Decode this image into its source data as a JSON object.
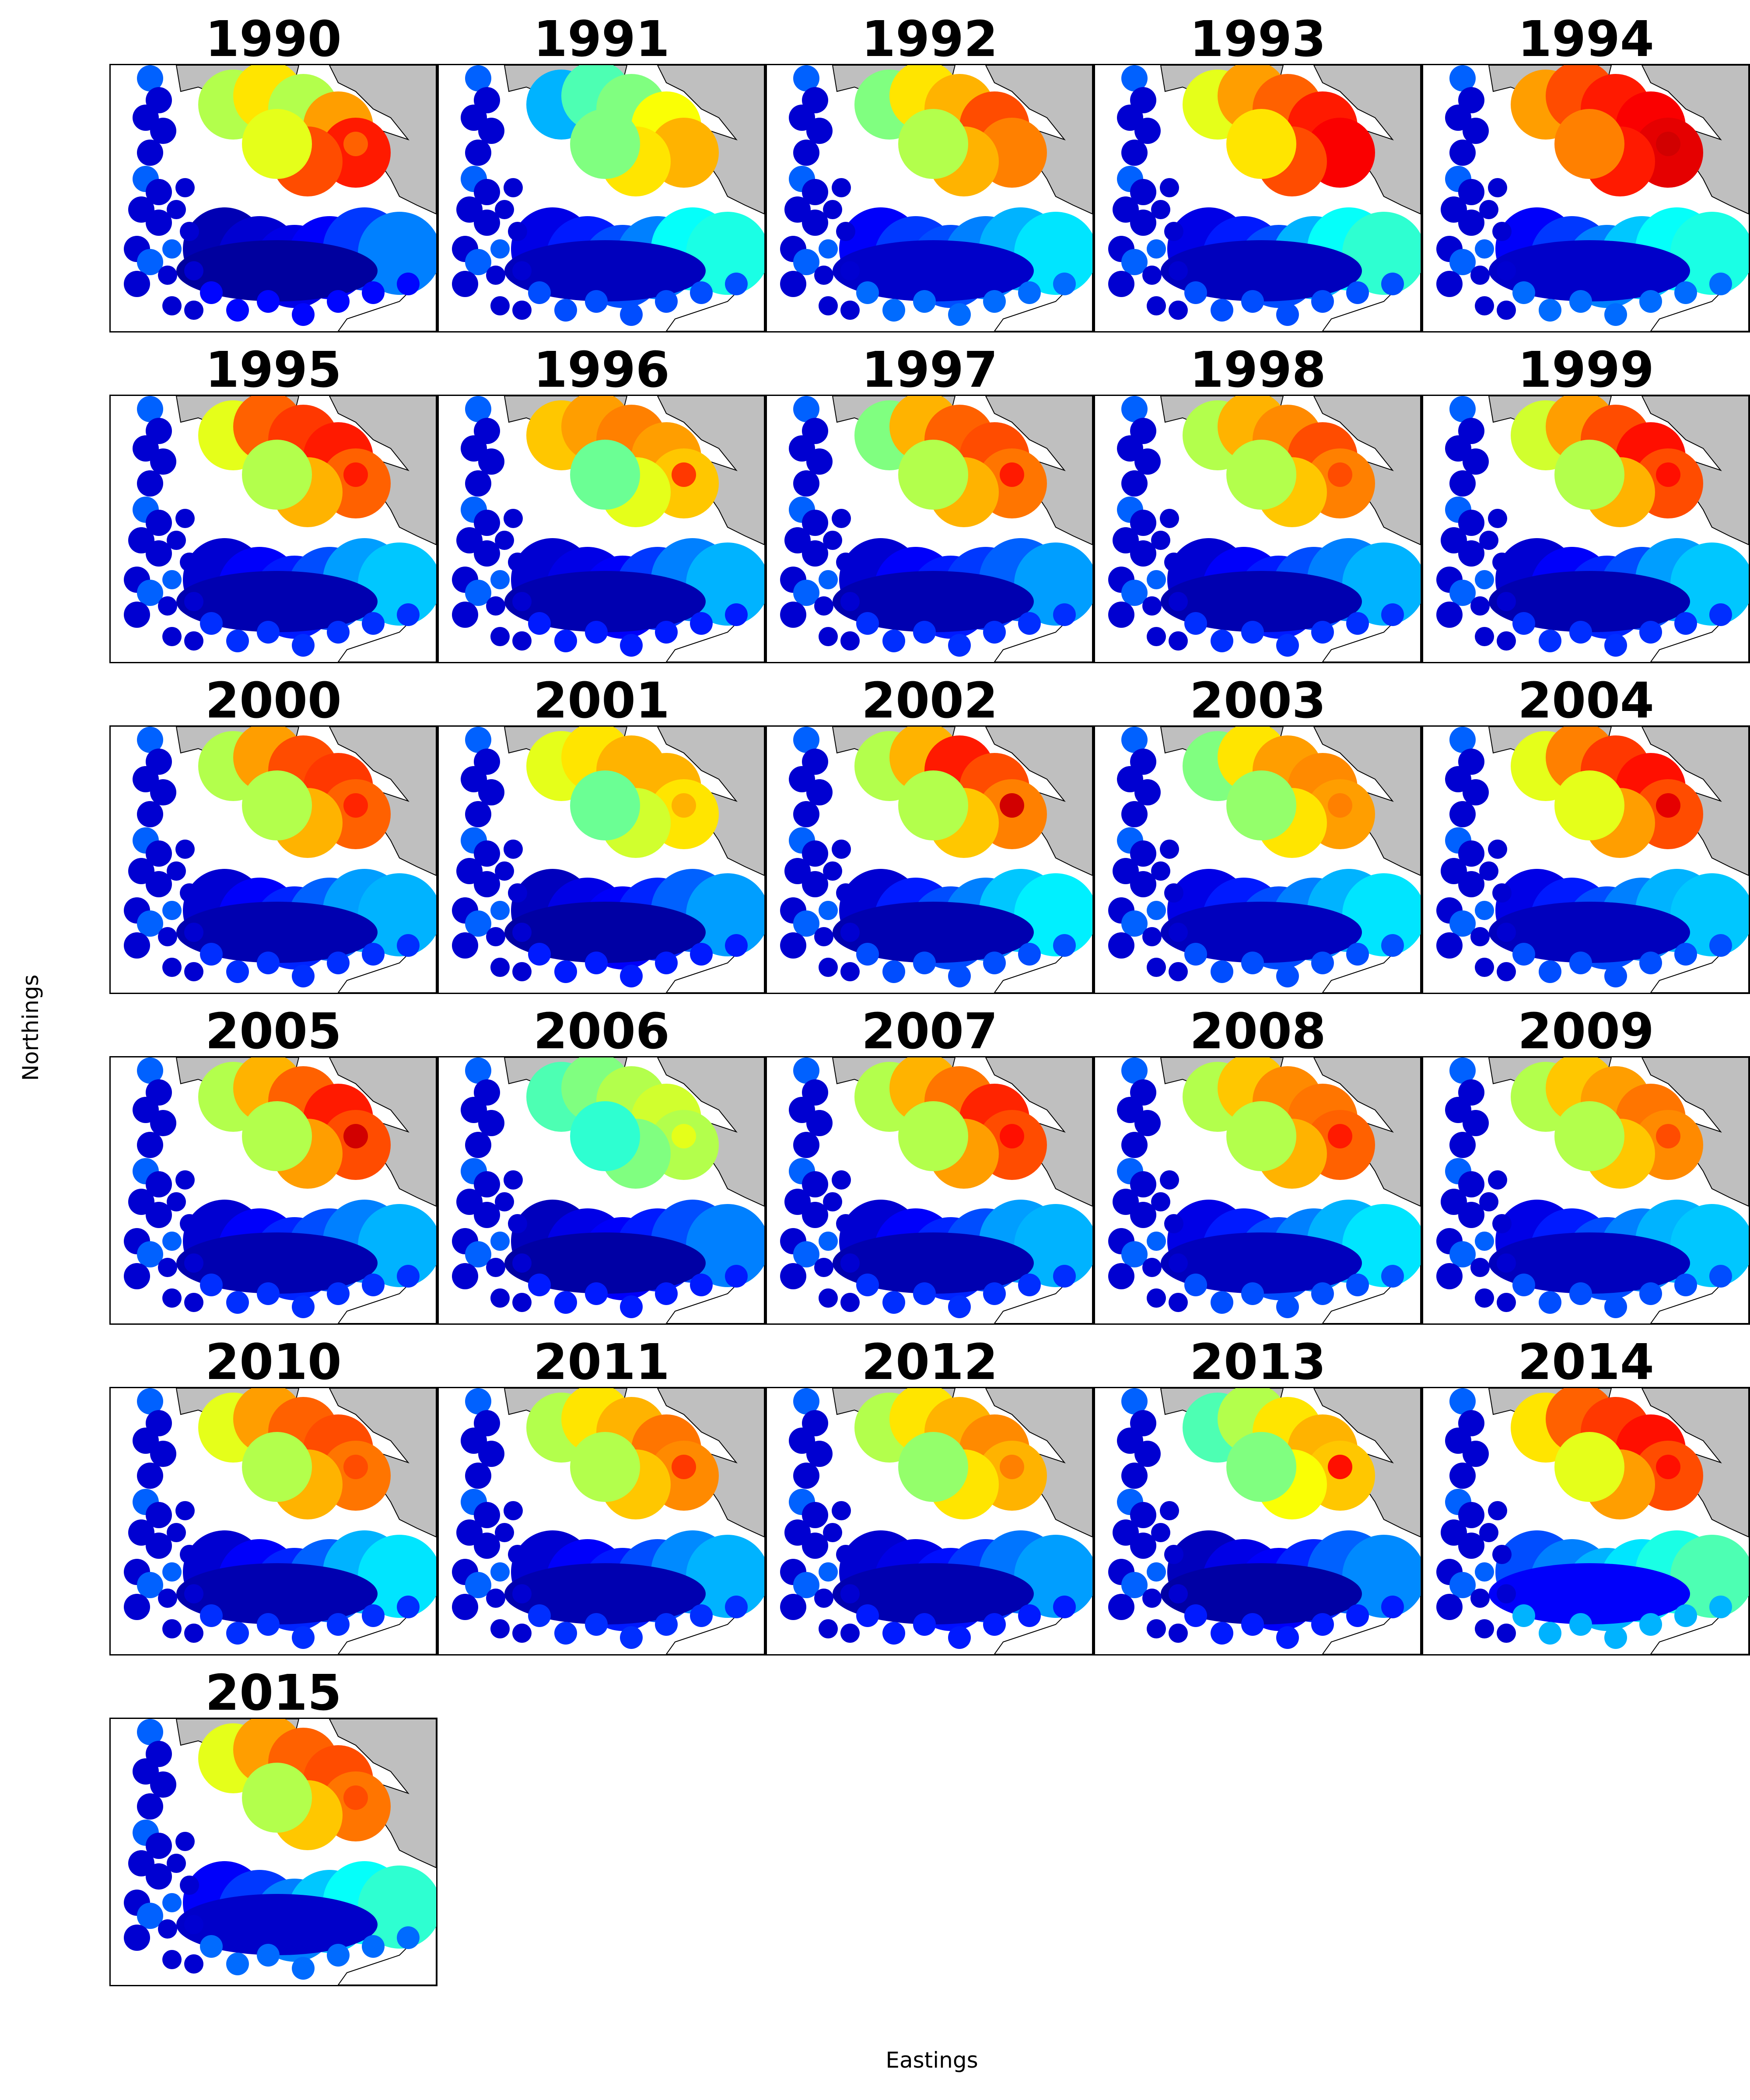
{
  "figure": {
    "xlabel": "Eastings",
    "ylabel": "Northings"
  },
  "panels": [
    {
      "title": "1990",
      "north": [
        0.55,
        0.65,
        0.55,
        0.72,
        0.85,
        0.8,
        0.6
      ],
      "south": [
        0.05,
        0.08,
        0.1,
        0.12,
        0.18,
        0.25
      ],
      "hot": [
        0.78,
        0.2
      ]
    },
    {
      "title": "1991",
      "north": [
        0.3,
        0.45,
        0.5,
        0.62,
        0.7,
        0.65,
        0.5
      ],
      "south": [
        0.1,
        0.15,
        0.2,
        0.25,
        0.38,
        0.4
      ],
      "hot": [
        0.7,
        0.25
      ]
    },
    {
      "title": "1992",
      "north": [
        0.5,
        0.65,
        0.7,
        0.8,
        0.75,
        0.7,
        0.55
      ],
      "south": [
        0.12,
        0.18,
        0.2,
        0.25,
        0.3,
        0.35
      ],
      "hot": [
        0.75,
        0.25
      ]
    },
    {
      "title": "1993",
      "north": [
        0.6,
        0.72,
        0.78,
        0.85,
        0.88,
        0.8,
        0.65
      ],
      "south": [
        0.1,
        0.15,
        0.2,
        0.3,
        0.38,
        0.42
      ],
      "hot": [
        0.88,
        0.3
      ]
    },
    {
      "title": "1994",
      "north": [
        0.72,
        0.8,
        0.85,
        0.88,
        0.9,
        0.85,
        0.75
      ],
      "south": [
        0.12,
        0.18,
        0.25,
        0.32,
        0.38,
        0.4
      ],
      "hot": [
        0.92,
        0.3
      ]
    },
    {
      "title": "1995",
      "north": [
        0.6,
        0.78,
        0.82,
        0.85,
        0.78,
        0.7,
        0.55
      ],
      "south": [
        0.08,
        0.12,
        0.15,
        0.2,
        0.28,
        0.32
      ],
      "hot": [
        0.85,
        0.25
      ]
    },
    {
      "title": "1996",
      "north": [
        0.68,
        0.72,
        0.75,
        0.72,
        0.68,
        0.6,
        0.48
      ],
      "south": [
        0.08,
        0.1,
        0.12,
        0.18,
        0.25,
        0.3
      ],
      "hot": [
        0.82,
        0.2
      ]
    },
    {
      "title": "1997",
      "north": [
        0.5,
        0.7,
        0.78,
        0.8,
        0.76,
        0.7,
        0.55
      ],
      "south": [
        0.08,
        0.12,
        0.15,
        0.18,
        0.22,
        0.28
      ],
      "hot": [
        0.85,
        0.3
      ]
    },
    {
      "title": "1998",
      "north": [
        0.55,
        0.7,
        0.74,
        0.8,
        0.75,
        0.68,
        0.55
      ],
      "south": [
        0.08,
        0.12,
        0.15,
        0.2,
        0.25,
        0.3
      ],
      "hot": [
        0.8,
        0.25
      ]
    },
    {
      "title": "1999",
      "north": [
        0.58,
        0.72,
        0.8,
        0.86,
        0.8,
        0.7,
        0.55
      ],
      "south": [
        0.08,
        0.12,
        0.16,
        0.2,
        0.28,
        0.32
      ],
      "hot": [
        0.86,
        0.3
      ]
    },
    {
      "title": "2000",
      "north": [
        0.55,
        0.72,
        0.8,
        0.82,
        0.78,
        0.7,
        0.55
      ],
      "south": [
        0.08,
        0.12,
        0.16,
        0.22,
        0.28,
        0.3
      ],
      "hot": [
        0.84,
        0.3
      ]
    },
    {
      "title": "2001",
      "north": [
        0.6,
        0.65,
        0.7,
        0.7,
        0.65,
        0.58,
        0.48
      ],
      "south": [
        0.06,
        0.1,
        0.12,
        0.16,
        0.22,
        0.28
      ],
      "hot": [
        0.7,
        0.2
      ]
    },
    {
      "title": "2002",
      "north": [
        0.55,
        0.7,
        0.85,
        0.8,
        0.75,
        0.68,
        0.55
      ],
      "south": [
        0.08,
        0.15,
        0.2,
        0.25,
        0.32,
        0.36
      ],
      "hot": [
        0.92,
        0.3
      ]
    },
    {
      "title": "2003",
      "north": [
        0.5,
        0.65,
        0.72,
        0.74,
        0.72,
        0.65,
        0.52
      ],
      "south": [
        0.1,
        0.15,
        0.2,
        0.25,
        0.3,
        0.35
      ],
      "hot": [
        0.75,
        0.2
      ]
    },
    {
      "title": "2004",
      "north": [
        0.6,
        0.75,
        0.82,
        0.86,
        0.8,
        0.72,
        0.6
      ],
      "south": [
        0.1,
        0.15,
        0.2,
        0.25,
        0.3,
        0.32
      ],
      "hot": [
        0.9,
        0.3
      ]
    },
    {
      "title": "2005",
      "north": [
        0.55,
        0.7,
        0.78,
        0.85,
        0.8,
        0.72,
        0.55
      ],
      "south": [
        0.08,
        0.12,
        0.16,
        0.2,
        0.25,
        0.3
      ],
      "hot": [
        0.92,
        0.3
      ]
    },
    {
      "title": "2006",
      "north": [
        0.45,
        0.5,
        0.55,
        0.58,
        0.55,
        0.5,
        0.42
      ],
      "south": [
        0.06,
        0.1,
        0.12,
        0.15,
        0.2,
        0.25
      ],
      "hot": [
        0.6,
        0.2
      ]
    },
    {
      "title": "2007",
      "north": [
        0.55,
        0.7,
        0.76,
        0.84,
        0.8,
        0.72,
        0.55
      ],
      "south": [
        0.08,
        0.12,
        0.16,
        0.2,
        0.28,
        0.3
      ],
      "hot": [
        0.86,
        0.3
      ]
    },
    {
      "title": "2008",
      "north": [
        0.55,
        0.68,
        0.74,
        0.76,
        0.78,
        0.7,
        0.55
      ],
      "south": [
        0.1,
        0.15,
        0.2,
        0.25,
        0.3,
        0.35
      ],
      "hot": [
        0.85,
        0.25
      ]
    },
    {
      "title": "2009",
      "north": [
        0.55,
        0.68,
        0.72,
        0.76,
        0.74,
        0.68,
        0.55
      ],
      "south": [
        0.1,
        0.15,
        0.2,
        0.25,
        0.3,
        0.32
      ],
      "hot": [
        0.8,
        0.25
      ]
    },
    {
      "title": "2010",
      "north": [
        0.6,
        0.72,
        0.78,
        0.8,
        0.76,
        0.7,
        0.55
      ],
      "south": [
        0.08,
        0.12,
        0.16,
        0.22,
        0.3,
        0.35
      ],
      "hot": [
        0.8,
        0.25
      ]
    },
    {
      "title": "2011",
      "north": [
        0.55,
        0.65,
        0.7,
        0.76,
        0.74,
        0.68,
        0.55
      ],
      "south": [
        0.08,
        0.12,
        0.15,
        0.2,
        0.26,
        0.3
      ],
      "hot": [
        0.82,
        0.25
      ]
    },
    {
      "title": "2012",
      "north": [
        0.55,
        0.65,
        0.7,
        0.74,
        0.7,
        0.65,
        0.52
      ],
      "south": [
        0.08,
        0.1,
        0.14,
        0.18,
        0.24,
        0.28
      ],
      "hot": [
        0.75,
        0.2
      ]
    },
    {
      "title": "2013",
      "north": [
        0.45,
        0.55,
        0.65,
        0.7,
        0.68,
        0.62,
        0.5
      ],
      "south": [
        0.06,
        0.1,
        0.12,
        0.16,
        0.22,
        0.26
      ],
      "hot": [
        0.86,
        0.25
      ]
    },
    {
      "title": "2014",
      "north": [
        0.65,
        0.78,
        0.82,
        0.86,
        0.8,
        0.72,
        0.6
      ],
      "south": [
        0.2,
        0.25,
        0.3,
        0.35,
        0.4,
        0.45
      ],
      "hot": [
        0.86,
        0.3
      ]
    },
    {
      "title": "2015",
      "north": [
        0.6,
        0.72,
        0.78,
        0.8,
        0.76,
        0.68,
        0.55
      ],
      "south": [
        0.12,
        0.18,
        0.25,
        0.32,
        0.38,
        0.42
      ],
      "hot": [
        0.8,
        0.25
      ]
    }
  ]
}
